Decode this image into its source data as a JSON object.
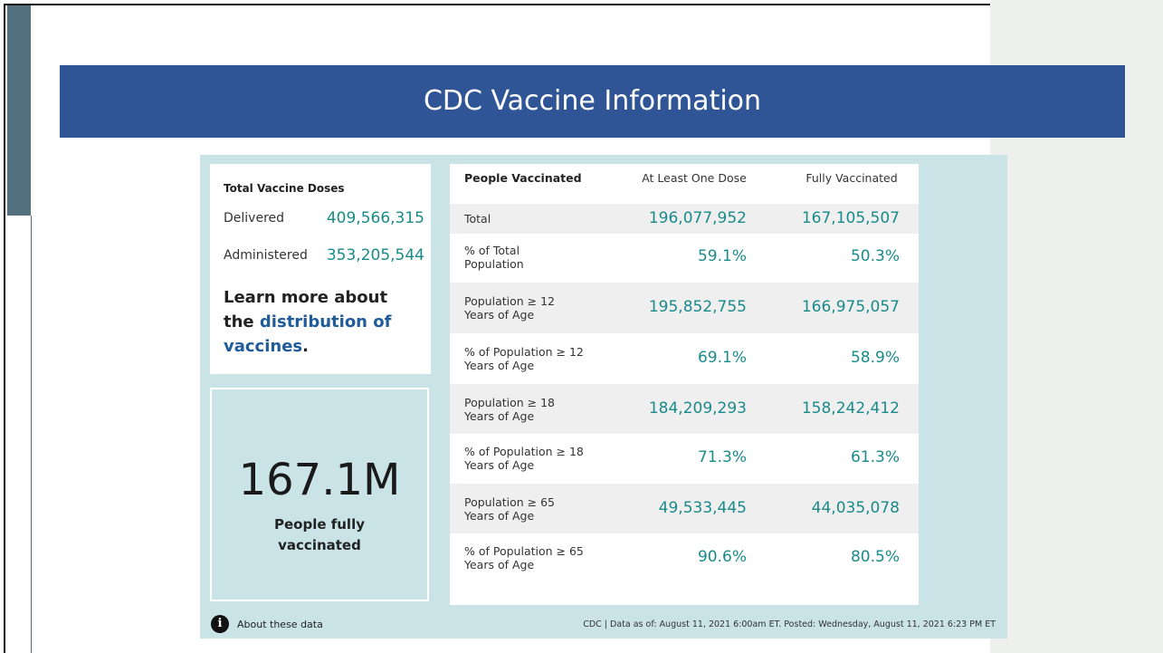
{
  "slide": {
    "title": "CDC Vaccine Information"
  },
  "doses": {
    "heading": "Total Vaccine Doses",
    "rows": [
      [
        "Delivered",
        "409,566,315"
      ],
      [
        "Administered",
        "353,205,544"
      ]
    ],
    "learn_more": {
      "prefix": "Learn more about the",
      "link": "distribution of vaccines",
      "suffix": "."
    }
  },
  "highlight": {
    "value": "167.1M",
    "label": "People fully vaccinated"
  },
  "table": {
    "header": [
      "People Vaccinated",
      "At Least One Dose",
      "Fully Vaccinated"
    ],
    "rows": [
      [
        [
          "Total"
        ],
        "196,077,952",
        "167,105,507"
      ],
      [
        [
          "% of Total",
          "Population"
        ],
        "59.1%",
        "50.3%"
      ],
      [
        [
          "Population ≥ 12",
          "Years of Age"
        ],
        "195,852,755",
        "166,975,057"
      ],
      [
        [
          "% of Population ≥ 12",
          "Years of Age"
        ],
        "69.1%",
        "58.9%"
      ],
      [
        [
          "Population ≥ 18",
          "Years of Age"
        ],
        "184,209,293",
        "158,242,412"
      ],
      [
        [
          "% of Population ≥ 18",
          "Years of Age"
        ],
        "71.3%",
        "61.3%"
      ],
      [
        [
          "Population ≥ 65",
          "Years of Age"
        ],
        "49,533,445",
        "44,035,078"
      ],
      [
        [
          "% of Population ≥ 65",
          "Years of Age"
        ],
        "90.6%",
        "80.5%"
      ]
    ]
  },
  "footer": {
    "about": "About these data",
    "source": "CDC | Data as of: August 11, 2021 6:00am ET. Posted: Wednesday, August 11, 2021 6:23 PM ET"
  }
}
